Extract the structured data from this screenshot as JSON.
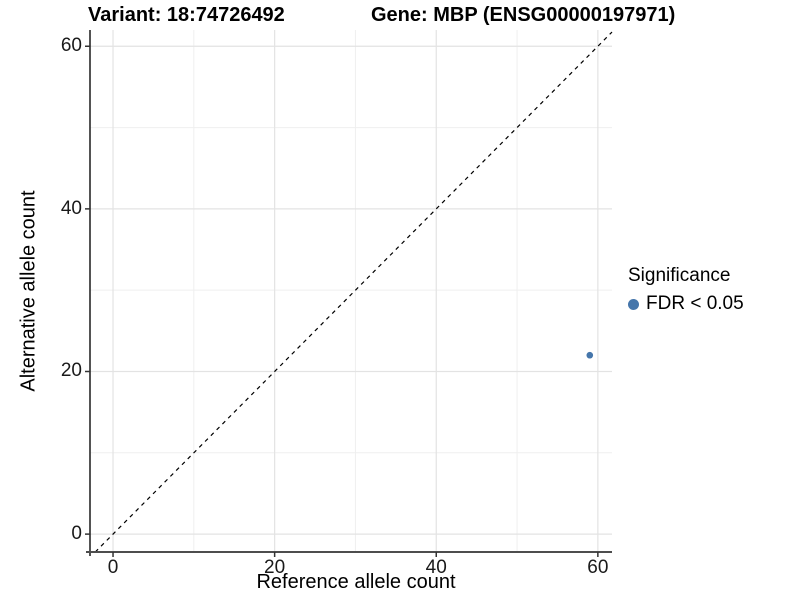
{
  "chart_data": {
    "type": "scatter",
    "titles": {
      "variant": "Variant: 18:74726492",
      "gene": "Gene: MBP (ENSG00000197971)"
    },
    "xlabel": "Reference allele count",
    "ylabel": "Alternative allele count",
    "xlim": [
      -2.85,
      61.75
    ],
    "ylim": [
      -2.2,
      62.0
    ],
    "x_ticks": [
      0,
      20,
      40,
      60
    ],
    "y_ticks": [
      0,
      20,
      40,
      60
    ],
    "x_minor_ticks": [
      10,
      30,
      50
    ],
    "y_minor_ticks": [
      10,
      30,
      50
    ],
    "grid": true,
    "legend_position": "right",
    "identity_line": {
      "equation": "y = x",
      "style": "dashed",
      "color": "#000000"
    },
    "series": [
      {
        "name": "FDR < 0.05",
        "color": "#4576AB",
        "points": [
          {
            "x": 59,
            "y": 22
          }
        ]
      }
    ],
    "point_radius": 3.3,
    "legend": {
      "title": "Significance",
      "items": [
        {
          "label": "FDR < 0.05",
          "color": "#4576AB"
        }
      ]
    },
    "colors": {
      "grid_major": "#e3e3e3",
      "grid_minor": "#efefef",
      "axis_line_x": "#4d4d4d",
      "axis_line_y": "#1a1a1a",
      "tick_mark": "#333333"
    }
  }
}
